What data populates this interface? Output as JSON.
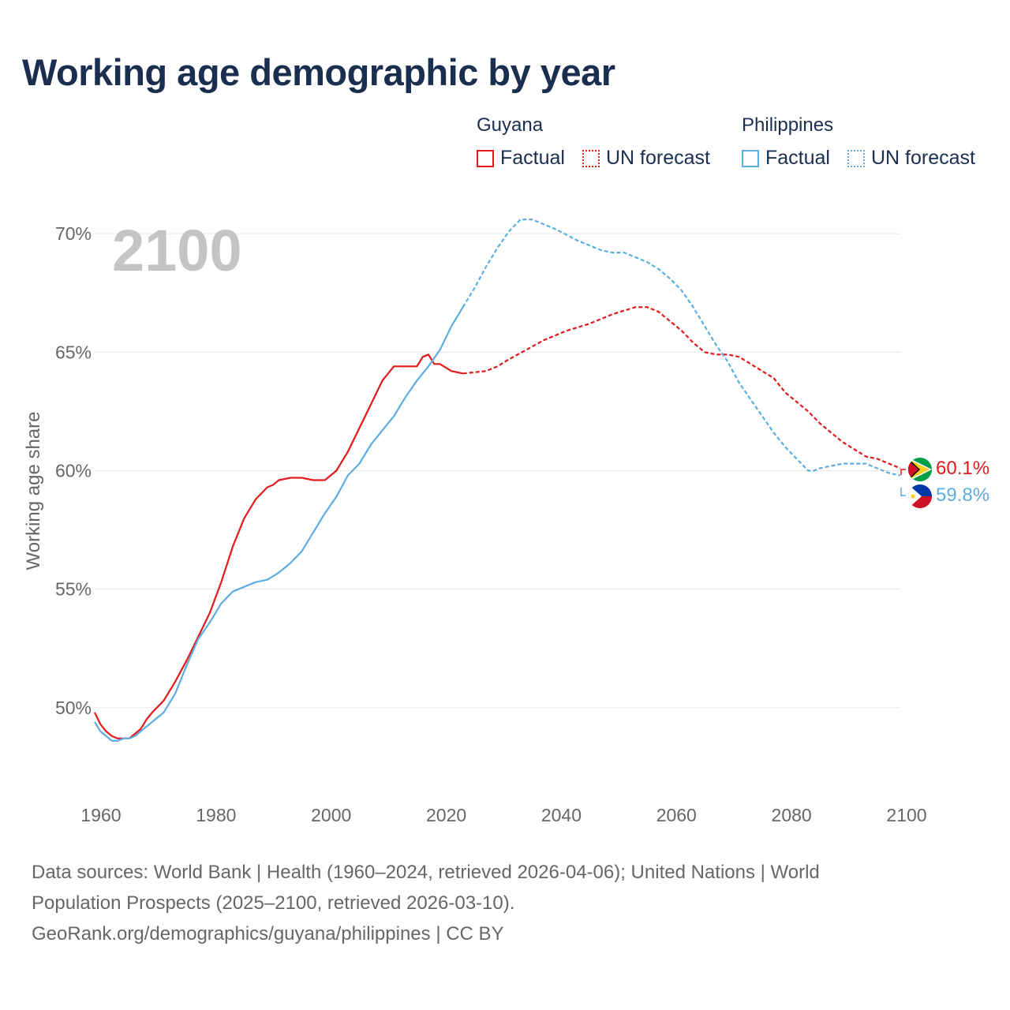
{
  "title": "Working age demographic by year",
  "year_watermark": "2100",
  "legend": {
    "groups": [
      {
        "country": "Guyana",
        "color": "#e31a1c",
        "factual_label": "Factual",
        "forecast_label": "UN forecast"
      },
      {
        "country": "Philippines",
        "color": "#5dade2",
        "factual_label": "Factual",
        "forecast_label": "UN forecast"
      }
    ]
  },
  "end_labels": {
    "guyana": "60.1%",
    "philippines": "59.8%"
  },
  "sources": {
    "line1": "Data sources: World Bank | Health (1960–2024, retrieved 2026-04-06); United Nations | World",
    "line2": "Population Prospects (2025–2100, retrieved 2026-03-10).",
    "line3": "GeoRank.org/demographics/guyana/philippines | CC BY"
  },
  "chart_data": {
    "type": "line",
    "title": "Working age demographic by year",
    "xlabel": "",
    "ylabel": "Working age share",
    "xlim": [
      1960,
      2100
    ],
    "ylim": [
      47,
      72
    ],
    "x_ticks": [
      1960,
      1980,
      2000,
      2020,
      2040,
      2060,
      2080,
      2100
    ],
    "x_tick_labels": [
      "1960",
      "1980",
      "2000",
      "2020",
      "2040",
      "2060",
      "2080",
      "2100"
    ],
    "y_ticks": [
      50,
      55,
      60,
      65,
      70
    ],
    "y_tick_labels": [
      "50%",
      "55%",
      "60%",
      "65%",
      "70%"
    ],
    "grid": true,
    "legend_position": "top-right",
    "series": [
      {
        "name": "Guyana",
        "segment": "Factual",
        "color": "#e31a1c",
        "dashed": false,
        "x": [
          1960,
          1961,
          1962,
          1963,
          1964,
          1965,
          1966,
          1967,
          1968,
          1969,
          1970,
          1972,
          1974,
          1976,
          1978,
          1980,
          1982,
          1984,
          1986,
          1988,
          1990,
          1991,
          1992,
          1994,
          1996,
          1998,
          2000,
          2002,
          2004,
          2006,
          2008,
          2010,
          2012,
          2014,
          2016,
          2017,
          2018,
          2019,
          2020,
          2022,
          2024
        ],
        "values": [
          49.8,
          49.3,
          49.0,
          48.8,
          48.7,
          48.7,
          48.7,
          48.9,
          49.1,
          49.5,
          49.8,
          50.3,
          51.1,
          52.0,
          53.0,
          54.0,
          55.3,
          56.8,
          58.0,
          58.8,
          59.3,
          59.4,
          59.6,
          59.7,
          59.7,
          59.6,
          59.6,
          60.0,
          60.8,
          61.8,
          62.8,
          63.8,
          64.4,
          64.4,
          64.4,
          64.8,
          64.9,
          64.5,
          64.5,
          64.2,
          64.1
        ]
      },
      {
        "name": "Guyana",
        "segment": "UN forecast",
        "color": "#e31a1c",
        "dashed": true,
        "x": [
          2024,
          2028,
          2030,
          2032,
          2035,
          2038,
          2042,
          2046,
          2050,
          2054,
          2056,
          2058,
          2060,
          2062,
          2064,
          2066,
          2068,
          2070,
          2072,
          2074,
          2076,
          2078,
          2080,
          2082,
          2084,
          2086,
          2088,
          2090,
          2092,
          2094,
          2096,
          2098,
          2100
        ],
        "values": [
          64.1,
          64.2,
          64.4,
          64.7,
          65.1,
          65.5,
          65.9,
          66.2,
          66.6,
          66.9,
          66.9,
          66.7,
          66.3,
          65.9,
          65.4,
          65.0,
          64.9,
          64.9,
          64.8,
          64.5,
          64.2,
          63.9,
          63.3,
          62.9,
          62.5,
          62.0,
          61.6,
          61.2,
          60.9,
          60.6,
          60.5,
          60.3,
          60.1
        ]
      },
      {
        "name": "Philippines",
        "segment": "Factual",
        "color": "#5dade2",
        "dashed": false,
        "x": [
          1960,
          1961,
          1962,
          1963,
          1964,
          1965,
          1966,
          1967,
          1968,
          1969,
          1970,
          1972,
          1974,
          1976,
          1978,
          1980,
          1982,
          1984,
          1986,
          1988,
          1990,
          1992,
          1994,
          1996,
          1998,
          2000,
          2002,
          2004,
          2006,
          2008,
          2010,
          2012,
          2014,
          2016,
          2018,
          2020,
          2022,
          2024
        ],
        "values": [
          49.4,
          49.0,
          48.8,
          48.6,
          48.6,
          48.7,
          48.7,
          48.8,
          49.0,
          49.2,
          49.4,
          49.8,
          50.6,
          51.8,
          52.9,
          53.6,
          54.4,
          54.9,
          55.1,
          55.3,
          55.4,
          55.7,
          56.1,
          56.6,
          57.4,
          58.2,
          58.9,
          59.8,
          60.3,
          61.1,
          61.7,
          62.3,
          63.1,
          63.8,
          64.4,
          65.1,
          66.1,
          66.9
        ]
      },
      {
        "name": "Philippines",
        "segment": "UN forecast",
        "color": "#5dade2",
        "dashed": true,
        "x": [
          2024,
          2026,
          2028,
          2030,
          2032,
          2034,
          2036,
          2038,
          2040,
          2044,
          2048,
          2050,
          2052,
          2054,
          2056,
          2058,
          2060,
          2062,
          2064,
          2066,
          2068,
          2070,
          2072,
          2074,
          2076,
          2078,
          2080,
          2082,
          2084,
          2085,
          2086,
          2088,
          2090,
          2092,
          2094,
          2096,
          2098,
          2100
        ],
        "values": [
          66.9,
          67.7,
          68.6,
          69.4,
          70.1,
          70.6,
          70.6,
          70.4,
          70.2,
          69.7,
          69.3,
          69.2,
          69.2,
          69.0,
          68.8,
          68.5,
          68.1,
          67.6,
          66.9,
          66.1,
          65.3,
          64.6,
          63.7,
          63.0,
          62.3,
          61.6,
          61.0,
          60.5,
          60.0,
          60.0,
          60.1,
          60.2,
          60.3,
          60.3,
          60.3,
          60.1,
          59.9,
          59.8
        ]
      }
    ]
  }
}
